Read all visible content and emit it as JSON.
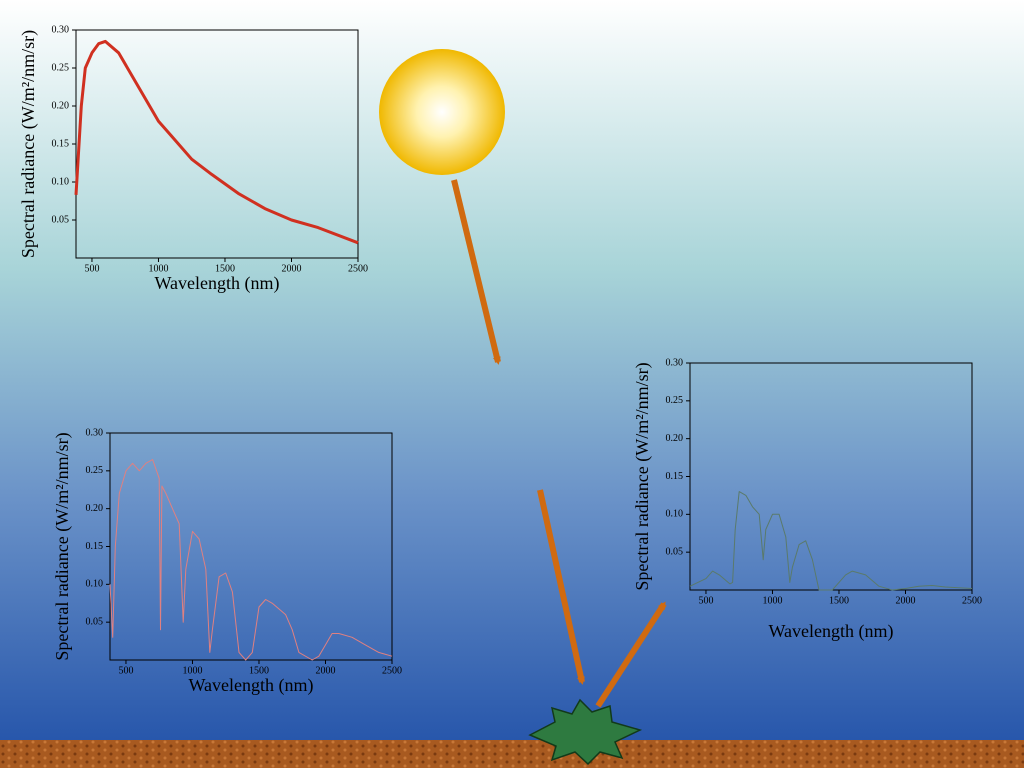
{
  "chart_data": [
    {
      "type": "line",
      "xlabel": "Wavelength (nm)",
      "ylabel": "Spectral radiance (W/m²/nm/sr)",
      "xlim": [
        380,
        2500
      ],
      "ylim": [
        0,
        0.3
      ],
      "xticks": [
        500,
        1000,
        1500,
        2000,
        2500
      ],
      "yticks": [
        0.05,
        {
          "value": 0.1,
          "label": "0.10"
        },
        0.15,
        {
          "value": 0.2,
          "label": "0.20"
        },
        0.25,
        {
          "value": 0.3,
          "label": "0.30"
        }
      ],
      "color": "#d03020",
      "x": [
        380,
        420,
        450,
        500,
        550,
        600,
        700,
        800,
        1000,
        1100,
        1250,
        1400,
        1600,
        1800,
        2000,
        2200,
        2500
      ],
      "values": [
        0.083,
        0.2,
        0.25,
        0.27,
        0.282,
        0.285,
        0.27,
        0.24,
        0.18,
        0.16,
        0.13,
        0.11,
        0.085,
        0.065,
        0.05,
        0.04,
        0.02
      ]
    },
    {
      "type": "line",
      "xlabel": "Wavelength (nm)",
      "ylabel": "Spectral radiance (W/m²/nm/sr)",
      "xlim": [
        380,
        2500
      ],
      "ylim": [
        0,
        0.3
      ],
      "xticks": [
        500,
        1000,
        1500,
        2000,
        2500
      ],
      "yticks": [
        0.05,
        {
          "value": 0.1,
          "label": "0.10"
        },
        0.15,
        {
          "value": 0.2,
          "label": "0.20"
        },
        0.25,
        {
          "value": 0.3,
          "label": "0.30"
        }
      ],
      "color": "#e08080",
      "x": [
        380,
        400,
        420,
        450,
        500,
        550,
        600,
        650,
        700,
        750,
        760,
        770,
        800,
        850,
        900,
        930,
        950,
        1000,
        1050,
        1100,
        1130,
        1150,
        1200,
        1250,
        1300,
        1350,
        1400,
        1450,
        1500,
        1550,
        1600,
        1700,
        1750,
        1800,
        1900,
        1950,
        2000,
        2050,
        2100,
        2200,
        2300,
        2400,
        2500
      ],
      "values": [
        0.1,
        0.03,
        0.15,
        0.22,
        0.25,
        0.26,
        0.25,
        0.26,
        0.265,
        0.24,
        0.04,
        0.23,
        0.22,
        0.2,
        0.18,
        0.05,
        0.12,
        0.17,
        0.16,
        0.12,
        0.01,
        0.04,
        0.11,
        0.115,
        0.09,
        0.01,
        0.0,
        0.01,
        0.07,
        0.08,
        0.075,
        0.06,
        0.04,
        0.01,
        0.0,
        0.005,
        0.02,
        0.035,
        0.035,
        0.03,
        0.02,
        0.01,
        0.005
      ]
    },
    {
      "type": "line",
      "xlabel": "Wavelength (nm)",
      "ylabel": "Spectral radiance (W/m²/nm/sr)",
      "xlim": [
        380,
        2500
      ],
      "ylim": [
        0,
        0.3
      ],
      "xticks": [
        500,
        1000,
        1500,
        2000,
        2500
      ],
      "yticks": [
        0.05,
        {
          "value": 0.1,
          "label": "0.10"
        },
        0.15,
        {
          "value": 0.2,
          "label": "0.20"
        },
        0.25,
        {
          "value": 0.3,
          "label": "0.30"
        }
      ],
      "color": "#5a7a6a",
      "x": [
        380,
        500,
        550,
        600,
        680,
        700,
        720,
        750,
        800,
        850,
        900,
        930,
        950,
        1000,
        1050,
        1100,
        1130,
        1150,
        1200,
        1250,
        1300,
        1350,
        1450,
        1500,
        1550,
        1600,
        1700,
        1800,
        1900,
        2000,
        2100,
        2200,
        2300,
        2500
      ],
      "values": [
        0.005,
        0.015,
        0.025,
        0.02,
        0.008,
        0.01,
        0.08,
        0.13,
        0.125,
        0.11,
        0.1,
        0.04,
        0.08,
        0.1,
        0.1,
        0.07,
        0.01,
        0.03,
        0.06,
        0.065,
        0.04,
        0.0,
        0.0,
        0.01,
        0.02,
        0.025,
        0.02,
        0.005,
        0.0,
        0.002,
        0.005,
        0.006,
        0.004,
        0.002
      ]
    }
  ]
}
